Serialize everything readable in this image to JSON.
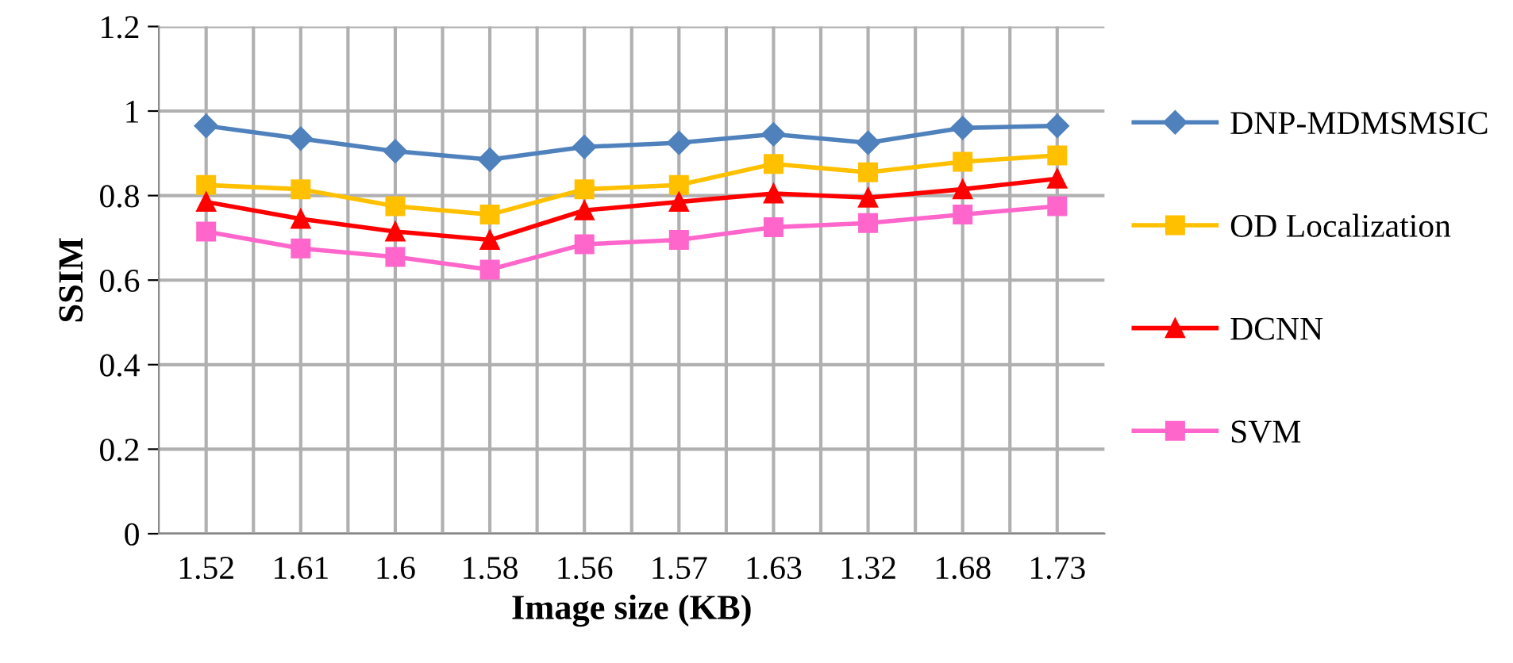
{
  "chart_data": {
    "type": "line",
    "xlabel": "Image size (KB)",
    "ylabel": "SSIM",
    "categories": [
      "1.52",
      "1.61",
      "1.6",
      "1.58",
      "1.56",
      "1.57",
      "1.63",
      "1.32",
      "1.68",
      "1.73"
    ],
    "series": [
      {
        "name": "DNP-MDMSMSIC",
        "color": "#4f81bd",
        "marker": "diamond",
        "values": [
          0.965,
          0.935,
          0.905,
          0.885,
          0.915,
          0.925,
          0.945,
          0.925,
          0.96,
          0.965
        ]
      },
      {
        "name": "OD Localization",
        "color": "#ffc000",
        "marker": "square",
        "values": [
          0.825,
          0.815,
          0.775,
          0.755,
          0.815,
          0.825,
          0.875,
          0.855,
          0.88,
          0.895
        ]
      },
      {
        "name": "DCNN",
        "color": "#ff0000",
        "marker": "triangle",
        "values": [
          0.785,
          0.745,
          0.715,
          0.695,
          0.765,
          0.785,
          0.805,
          0.795,
          0.815,
          0.84
        ]
      },
      {
        "name": "SVM",
        "color": "#ff66cc",
        "marker": "square",
        "values": [
          0.715,
          0.675,
          0.655,
          0.625,
          0.685,
          0.695,
          0.725,
          0.735,
          0.755,
          0.775
        ]
      }
    ],
    "ylim": [
      0,
      1.2
    ],
    "yticks": [
      0,
      0.2,
      0.4,
      0.6,
      0.8,
      1,
      1.2
    ],
    "grid": true,
    "legend": "right"
  }
}
